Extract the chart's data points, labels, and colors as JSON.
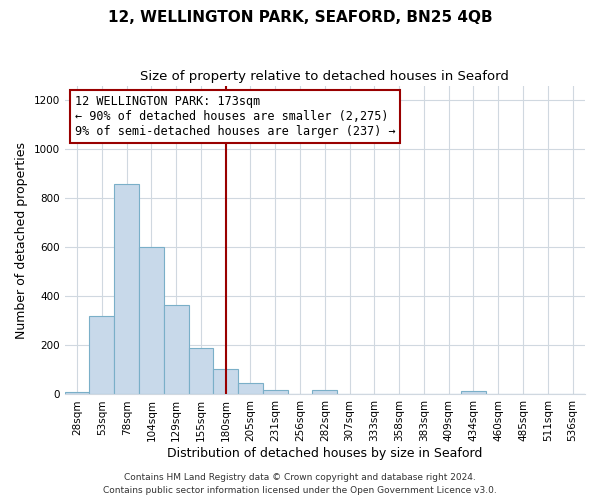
{
  "title": "12, WELLINGTON PARK, SEAFORD, BN25 4QB",
  "subtitle": "Size of property relative to detached houses in Seaford",
  "xlabel": "Distribution of detached houses by size in Seaford",
  "ylabel": "Number of detached properties",
  "bar_labels": [
    "28sqm",
    "53sqm",
    "78sqm",
    "104sqm",
    "129sqm",
    "155sqm",
    "180sqm",
    "205sqm",
    "231sqm",
    "256sqm",
    "282sqm",
    "307sqm",
    "333sqm",
    "358sqm",
    "383sqm",
    "409sqm",
    "434sqm",
    "460sqm",
    "485sqm",
    "511sqm",
    "536sqm"
  ],
  "bar_values": [
    10,
    320,
    860,
    600,
    365,
    190,
    105,
    48,
    18,
    0,
    18,
    0,
    0,
    0,
    0,
    0,
    14,
    0,
    0,
    0,
    0
  ],
  "bar_color": "#c8d9ea",
  "bar_edge_color": "#7aafc8",
  "vline_x_idx": 6,
  "vline_color": "#990000",
  "annotation_title": "12 WELLINGTON PARK: 173sqm",
  "annotation_line1": "← 90% of detached houses are smaller (2,275)",
  "annotation_line2": "9% of semi-detached houses are larger (237) →",
  "annotation_box_edge_color": "#990000",
  "ylim": [
    0,
    1260
  ],
  "yticks": [
    0,
    200,
    400,
    600,
    800,
    1000,
    1200
  ],
  "footer1": "Contains HM Land Registry data © Crown copyright and database right 2024.",
  "footer2": "Contains public sector information licensed under the Open Government Licence v3.0.",
  "bg_color": "#ffffff",
  "plot_bg_color": "#ffffff",
  "grid_color": "#d0d8e0",
  "title_fontsize": 11,
  "subtitle_fontsize": 9.5,
  "label_fontsize": 9,
  "tick_fontsize": 7.5,
  "footer_fontsize": 6.5,
  "annotation_fontsize": 8.5
}
